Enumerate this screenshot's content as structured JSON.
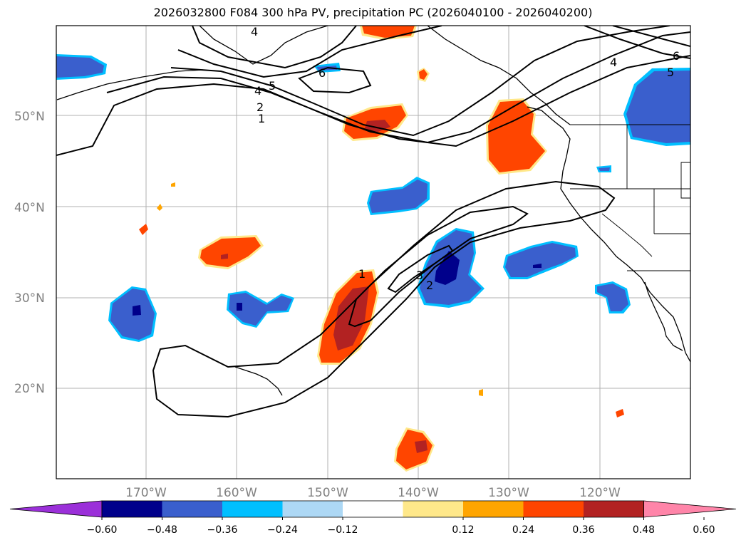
{
  "title": "2026032800 F084 300 hPa PV, precipitation PC (2026040100 - 2026040200)",
  "lat_labels": [
    "50°N",
    "40°N",
    "30°N",
    "20°N"
  ],
  "lon_labels": [
    "170°W",
    "160°W",
    "150°W",
    "140°W",
    "130°W",
    "120°W"
  ],
  "colorbar": {
    "ticks": [
      "−0.60",
      "−0.48",
      "−0.36",
      "−0.24",
      "−0.12",
      "0.12",
      "0.24",
      "0.36",
      "0.48",
      "0.60"
    ],
    "colors": [
      "#9b30d9",
      "#00008b",
      "#3a5fcd",
      "#00bfff",
      "#add8f5",
      "#ffffff",
      "#ffe88a",
      "#ffa500",
      "#ff4500",
      "#b22222",
      "#ff85a9"
    ]
  },
  "pv_contour_labels": [
    "1",
    "2",
    "4",
    "5",
    "6",
    "1",
    "2",
    "3",
    "4",
    "5",
    "6",
    "4"
  ],
  "colors": {
    "coast": "#000000",
    "grid": "#b0b0b0",
    "contour": "#000000"
  }
}
